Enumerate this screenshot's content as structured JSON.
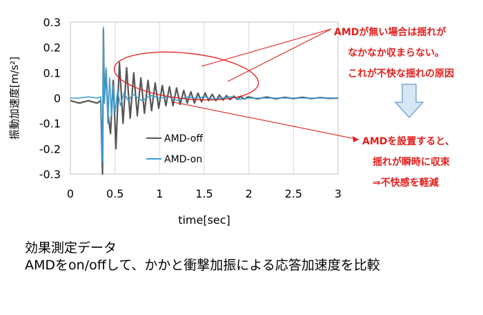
{
  "chart_data": {
    "type": "line",
    "xlabel": "time[sec]",
    "ylabel": "振動加速度[m/s²]",
    "xlim": [
      0,
      3
    ],
    "ylim": [
      -0.3,
      0.3
    ],
    "xticks": [
      "0",
      "0.5",
      "1",
      "1.5",
      "2",
      "2.5",
      "3"
    ],
    "xtick_values": [
      0,
      0.5,
      1,
      1.5,
      2,
      2.5,
      3
    ],
    "yticks": [
      "0.3",
      "0.2",
      "0.1",
      "0",
      "-0.1",
      "-0.2",
      "-0.3"
    ],
    "ytick_values": [
      0.3,
      0.2,
      0.1,
      0,
      -0.1,
      -0.2,
      -0.3
    ],
    "grid": "vertical",
    "legend_position": "lower-center",
    "series": [
      {
        "name": "AMD-off",
        "color": "#555555",
        "x": [
          0,
          0.1,
          0.2,
          0.3,
          0.34,
          0.36,
          0.37,
          0.38,
          0.4,
          0.42,
          0.45,
          0.48,
          0.51,
          0.55,
          0.59,
          0.63,
          0.67,
          0.71,
          0.75,
          0.79,
          0.83,
          0.87,
          0.91,
          0.95,
          0.99,
          1.03,
          1.07,
          1.11,
          1.15,
          1.19,
          1.23,
          1.27,
          1.31,
          1.35,
          1.39,
          1.43,
          1.47,
          1.51,
          1.55,
          1.59,
          1.63,
          1.67,
          1.71,
          1.75,
          1.79,
          1.83,
          1.87,
          1.91,
          1.95,
          1.99,
          2.1,
          2.2,
          2.3,
          2.4,
          2.5,
          2.6,
          2.7,
          2.8,
          2.9,
          3.0
        ],
        "values": [
          -0.01,
          -0.02,
          -0.01,
          -0.02,
          -0.01,
          -0.3,
          0.27,
          -0.01,
          0.11,
          -0.06,
          -0.14,
          0.07,
          -0.2,
          0.14,
          -0.1,
          0.12,
          -0.08,
          0.1,
          -0.07,
          0.08,
          -0.06,
          0.07,
          -0.05,
          0.06,
          -0.04,
          0.05,
          -0.03,
          0.045,
          -0.03,
          0.04,
          -0.025,
          0.03,
          -0.02,
          0.025,
          -0.02,
          0.02,
          -0.015,
          0.02,
          -0.01,
          0.015,
          -0.01,
          0.012,
          -0.008,
          0.01,
          -0.006,
          0.008,
          -0.005,
          0.006,
          -0.004,
          0.005,
          -0.003,
          0.004,
          -0.003,
          0.003,
          -0.002,
          0.003,
          -0.002,
          0.002,
          -0.001,
          0.0
        ]
      },
      {
        "name": "AMD-on",
        "color": "#3a9fd8",
        "x": [
          0,
          0.1,
          0.2,
          0.3,
          0.34,
          0.36,
          0.37,
          0.38,
          0.4,
          0.42,
          0.44,
          0.46,
          0.48,
          0.5,
          0.53,
          0.56,
          0.6,
          0.65,
          0.7,
          0.8,
          0.9,
          1.0,
          1.1,
          1.2,
          1.3,
          1.4,
          1.5,
          1.6,
          1.7,
          1.8,
          1.9,
          2.0,
          2.2,
          2.4,
          2.6,
          2.8,
          3.0
        ],
        "values": [
          0.0,
          0.0,
          0.005,
          0.0,
          0.005,
          -0.25,
          0.28,
          -0.02,
          0.12,
          -0.1,
          0.08,
          -0.07,
          0.05,
          -0.06,
          0.03,
          -0.03,
          0.02,
          -0.01,
          0.015,
          -0.01,
          0.01,
          0.0,
          0.005,
          -0.01,
          0.005,
          0.0,
          0.005,
          -0.005,
          0.0,
          0.005,
          -0.005,
          0.0,
          0.0,
          0.0,
          0.0,
          0.0,
          0.0
        ]
      }
    ]
  },
  "annotations": {
    "top": [
      "AMDが無い場合は揺れが",
      "なかなか収まらない。",
      "これが不快な揺れの原因"
    ],
    "bottom": [
      "AMDを設置すると、",
      "揺れが瞬時に収束",
      "⇒不快感を軽減"
    ],
    "color": "#e0201d",
    "arrow_color": "#9fc3e8"
  },
  "caption": {
    "line1": "効果測定データ",
    "line2": "AMDをon/offして、かかと衝撃加振による応答加速度を比較"
  }
}
